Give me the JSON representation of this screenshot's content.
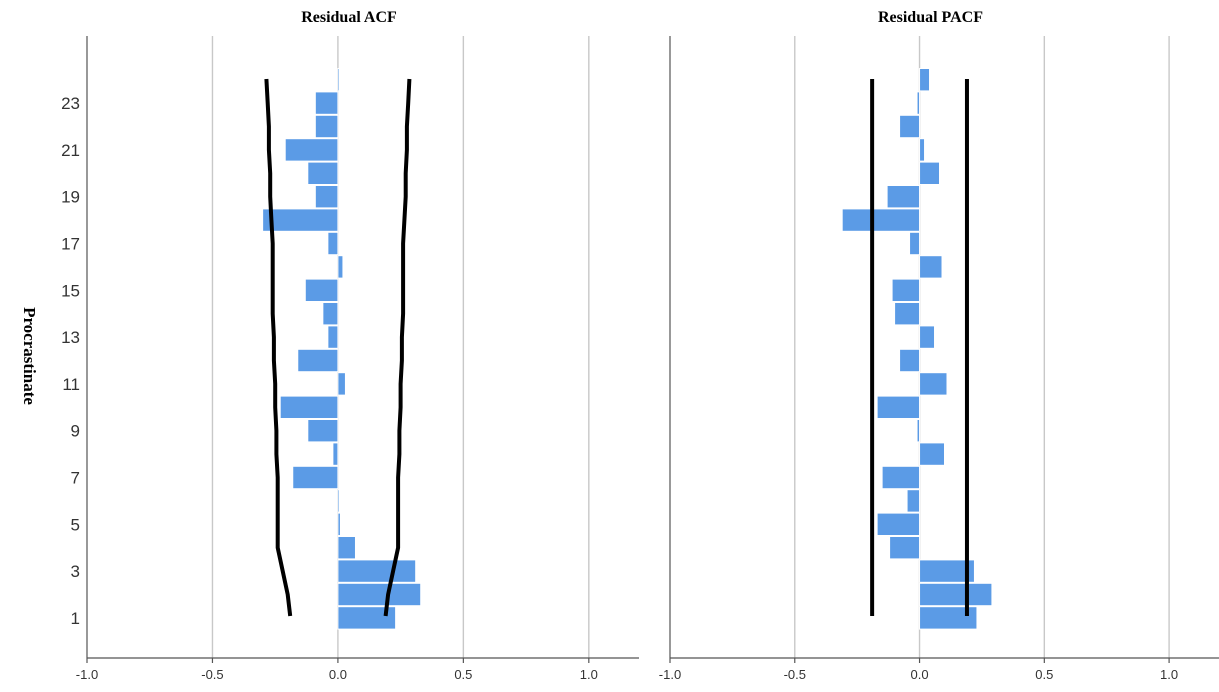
{
  "y_axis_title": "Procrastinate",
  "chart_data": [
    {
      "type": "bar",
      "orientation": "horizontal",
      "title": "Residual ACF",
      "xlabel": "",
      "ylabel": "Procrastinate",
      "xlim": [
        -1.0,
        1.2
      ],
      "x_ticks": [
        "-1.0",
        "-0.5",
        "0.0",
        "0.5",
        "1.0"
      ],
      "x_tick_values": [
        -1.0,
        -0.5,
        0.0,
        0.5,
        1.0
      ],
      "lags": [
        1,
        2,
        3,
        4,
        5,
        6,
        7,
        8,
        9,
        10,
        11,
        12,
        13,
        14,
        15,
        16,
        17,
        18,
        19,
        20,
        21,
        22,
        23,
        24
      ],
      "y_tick_labels": [
        "1",
        "3",
        "5",
        "7",
        "9",
        "11",
        "13",
        "15",
        "17",
        "19",
        "21",
        "23"
      ],
      "values": [
        0.23,
        0.33,
        0.31,
        0.07,
        0.01,
        0.0,
        -0.18,
        -0.02,
        -0.12,
        -0.23,
        0.03,
        -0.16,
        -0.04,
        -0.06,
        -0.13,
        0.02,
        -0.04,
        -0.3,
        -0.09,
        -0.12,
        -0.21,
        -0.09,
        -0.09,
        0.0
      ],
      "conf_upper": [
        0.19,
        0.2,
        0.22,
        0.24,
        0.24,
        0.24,
        0.24,
        0.245,
        0.245,
        0.25,
        0.25,
        0.255,
        0.255,
        0.26,
        0.26,
        0.26,
        0.26,
        0.265,
        0.27,
        0.27,
        0.275,
        0.275,
        0.28,
        0.285
      ],
      "conf_lower": [
        -0.19,
        -0.2,
        -0.22,
        -0.24,
        -0.24,
        -0.24,
        -0.24,
        -0.245,
        -0.245,
        -0.25,
        -0.25,
        -0.255,
        -0.255,
        -0.26,
        -0.26,
        -0.26,
        -0.26,
        -0.265,
        -0.27,
        -0.27,
        -0.275,
        -0.275,
        -0.28,
        -0.285
      ],
      "grid": true,
      "legend": "none"
    },
    {
      "type": "bar",
      "orientation": "horizontal",
      "title": "Residual PACF",
      "xlabel": "",
      "ylabel": "",
      "xlim": [
        -1.0,
        1.2
      ],
      "x_ticks": [
        "-1.0",
        "-0.5",
        "0.0",
        "0.5",
        "1.0"
      ],
      "x_tick_values": [
        -1.0,
        -0.5,
        0.0,
        0.5,
        1.0
      ],
      "lags": [
        1,
        2,
        3,
        4,
        5,
        6,
        7,
        8,
        9,
        10,
        11,
        12,
        13,
        14,
        15,
        16,
        17,
        18,
        19,
        20,
        21,
        22,
        23,
        24
      ],
      "values": [
        0.23,
        0.29,
        0.22,
        -0.12,
        -0.17,
        -0.05,
        -0.15,
        0.1,
        -0.01,
        -0.17,
        0.11,
        -0.08,
        0.06,
        -0.1,
        -0.11,
        0.09,
        -0.04,
        -0.31,
        -0.13,
        0.08,
        0.02,
        -0.08,
        -0.01,
        0.04
      ],
      "conf_upper": 0.19,
      "conf_lower": -0.19,
      "grid": true,
      "legend": "none"
    }
  ]
}
